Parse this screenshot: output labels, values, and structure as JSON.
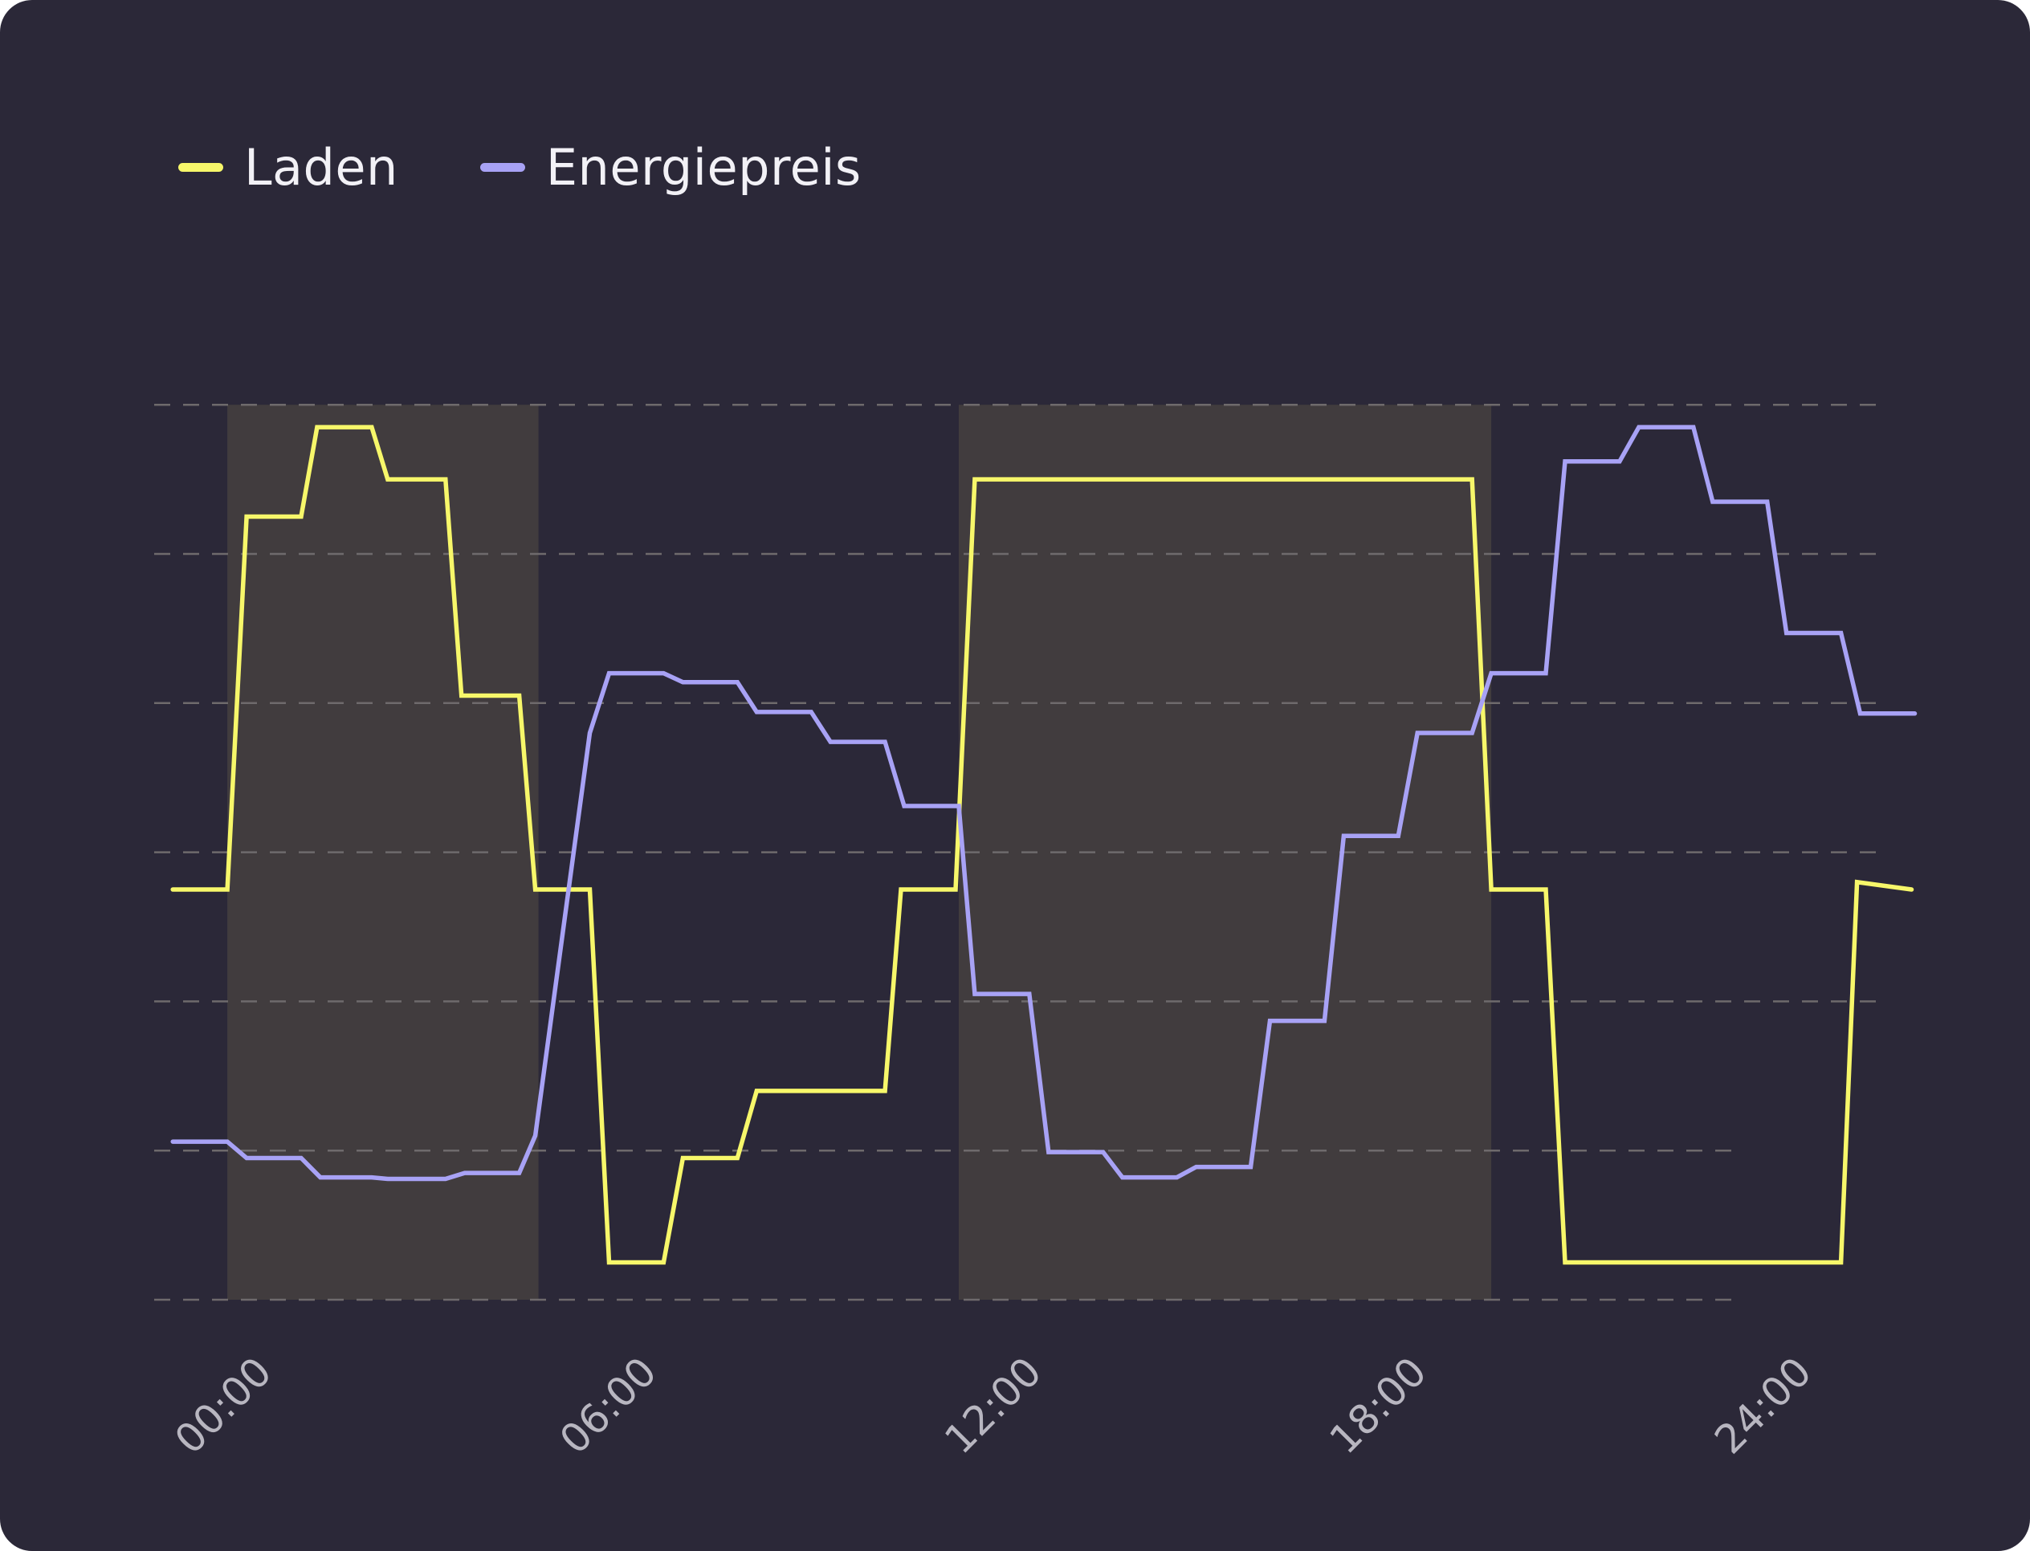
{
  "chart_data": {
    "type": "line",
    "title": "",
    "xlabel": "",
    "ylabel": "",
    "x_unit": "hours",
    "xlim": [
      -1.75,
      24.5
    ],
    "ylim": [
      0,
      6
    ],
    "grid": "horizontal dashed",
    "legend_position": "top-left",
    "tick_labels": [
      {
        "x": 0,
        "label": "00:00"
      },
      {
        "x": 6,
        "label": "06:00"
      },
      {
        "x": 12,
        "label": "12:00"
      },
      {
        "x": 18,
        "label": "18:00"
      },
      {
        "x": 24,
        "label": "24:00"
      }
    ],
    "highlight_ranges": [
      [
        -0.9,
        3.95
      ],
      [
        10.5,
        18.8
      ]
    ],
    "series": [
      {
        "name": "Laden",
        "color": "#f7f76a",
        "points": [
          [
            -1.75,
            2.75
          ],
          [
            -0.9,
            2.75
          ],
          [
            -0.6,
            5.25
          ],
          [
            0.25,
            5.25
          ],
          [
            0.5,
            5.85
          ],
          [
            1.35,
            5.85
          ],
          [
            1.6,
            5.5
          ],
          [
            2.5,
            5.5
          ],
          [
            2.75,
            4.05
          ],
          [
            3.65,
            4.05
          ],
          [
            3.9,
            2.75
          ],
          [
            4.75,
            2.75
          ],
          [
            5.05,
            0.25
          ],
          [
            5.9,
            0.25
          ],
          [
            6.2,
            0.95
          ],
          [
            7.05,
            0.95
          ],
          [
            7.35,
            1.4
          ],
          [
            9.35,
            1.4
          ],
          [
            9.6,
            2.75
          ],
          [
            10.45,
            2.75
          ],
          [
            10.75,
            5.5
          ],
          [
            18.5,
            5.5
          ],
          [
            18.8,
            2.75
          ],
          [
            19.65,
            2.75
          ],
          [
            19.95,
            0.25
          ],
          [
            24.25,
            0.25
          ],
          [
            24.5,
            2.8
          ],
          [
            25.35,
            2.75
          ]
        ]
      },
      {
        "name": "Energiepreis",
        "color": "#a8a2f5",
        "points": [
          [
            -1.75,
            1.06
          ],
          [
            -0.9,
            1.06
          ],
          [
            -0.6,
            0.95
          ],
          [
            0.25,
            0.95
          ],
          [
            0.55,
            0.82
          ],
          [
            1.35,
            0.82
          ],
          [
            1.6,
            0.81
          ],
          [
            2.5,
            0.81
          ],
          [
            2.8,
            0.85
          ],
          [
            3.65,
            0.85
          ],
          [
            3.9,
            1.1
          ],
          [
            4.75,
            3.8
          ],
          [
            5.05,
            4.2
          ],
          [
            5.9,
            4.2
          ],
          [
            6.2,
            4.14
          ],
          [
            7.05,
            4.14
          ],
          [
            7.35,
            3.94
          ],
          [
            8.2,
            3.94
          ],
          [
            8.5,
            3.74
          ],
          [
            9.35,
            3.74
          ],
          [
            9.65,
            3.31
          ],
          [
            10.5,
            3.31
          ],
          [
            10.75,
            2.05
          ],
          [
            11.6,
            2.05
          ],
          [
            11.9,
            0.99
          ],
          [
            12.75,
            0.99
          ],
          [
            13.05,
            0.82
          ],
          [
            13.9,
            0.82
          ],
          [
            14.2,
            0.89
          ],
          [
            15.05,
            0.89
          ],
          [
            15.35,
            1.87
          ],
          [
            16.2,
            1.87
          ],
          [
            16.5,
            3.11
          ],
          [
            17.35,
            3.11
          ],
          [
            17.65,
            3.8
          ],
          [
            18.5,
            3.8
          ],
          [
            18.8,
            4.2
          ],
          [
            19.65,
            4.2
          ],
          [
            19.95,
            5.62
          ],
          [
            20.8,
            5.62
          ],
          [
            21.1,
            5.85
          ],
          [
            21.95,
            5.85
          ],
          [
            22.25,
            5.35
          ],
          [
            23.1,
            5.35
          ],
          [
            23.4,
            4.47
          ],
          [
            24.25,
            4.47
          ],
          [
            24.55,
            3.93
          ],
          [
            25.4,
            3.93
          ]
        ]
      }
    ]
  }
}
